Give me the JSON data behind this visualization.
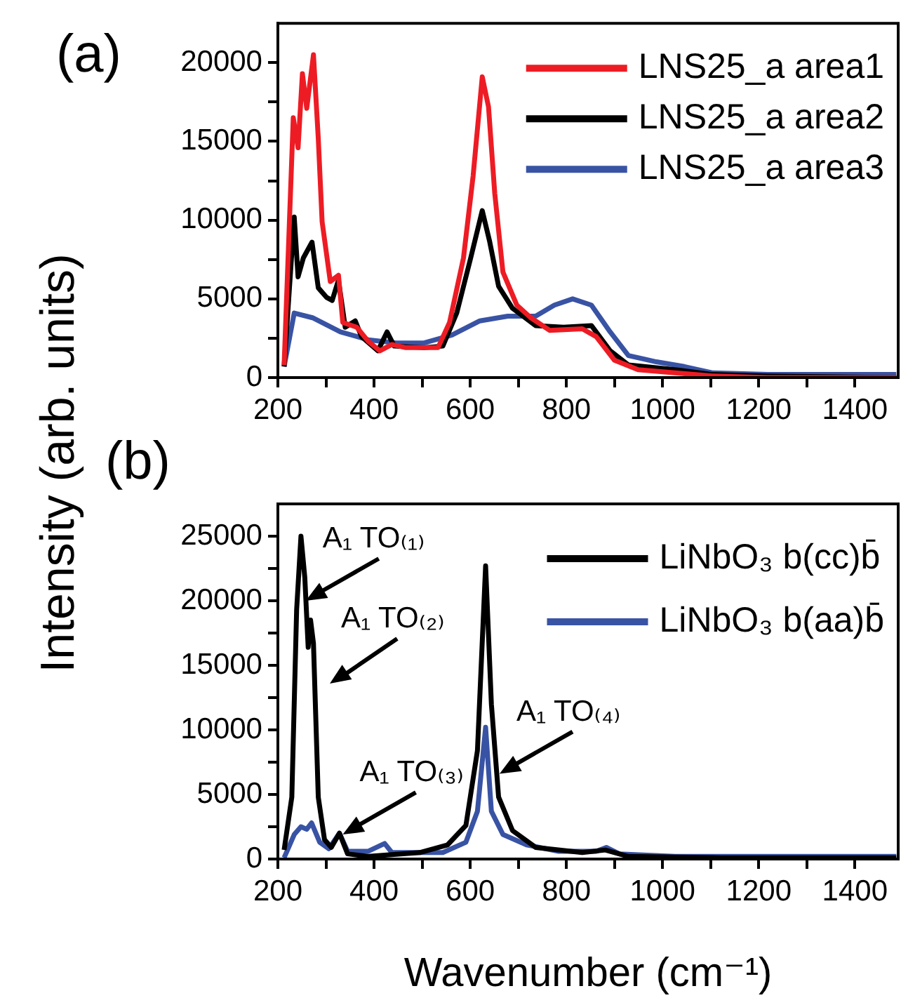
{
  "chart_data": [
    {
      "type": "line",
      "ylabel": "Intensity (arb. units)",
      "annotations": [
        "(a)"
      ],
      "legend": "top right",
      "grid": false,
      "marker": "none",
      "line_style": "solid",
      "xlim": [
        200,
        1490
      ],
      "xticks": [
        200,
        {
          "value": 300,
          "label": null
        },
        400,
        {
          "value": 500,
          "label": null
        },
        600,
        {
          "value": 700,
          "label": null
        },
        800,
        {
          "value": 900,
          "label": null
        },
        1000,
        {
          "value": 1100,
          "label": null
        },
        1200,
        {
          "value": 1300,
          "label": null
        },
        1400
      ],
      "ylim": [
        0,
        22500
      ],
      "yticks": [
        0,
        {
          "value": 2500,
          "label": null
        },
        5000,
        {
          "value": 7500,
          "label": null
        },
        10000,
        {
          "value": 12500,
          "label": null
        },
        15000,
        {
          "value": 17500,
          "label": null
        },
        20000
      ],
      "series": [
        {
          "name": "LNS25_a area1",
          "color": "#ed1c24",
          "x": [
            213,
            232,
            242,
            251,
            260,
            274,
            284,
            292,
            309,
            326,
            335,
            364,
            388,
            412,
            437,
            466,
            533,
            557,
            586,
            606,
            625,
            638,
            651,
            668,
            697,
            726,
            765,
            833,
            862,
            900,
            949,
            1026,
            1103,
            1219,
            1486
          ],
          "values": [
            800,
            16500,
            14600,
            19300,
            17100,
            20500,
            15200,
            9900,
            6100,
            6500,
            3500,
            3200,
            2300,
            1700,
            2100,
            1900,
            1900,
            3500,
            7600,
            12800,
            19100,
            17200,
            11700,
            6700,
            4600,
            3800,
            3000,
            3100,
            2600,
            1100,
            500,
            300,
            100,
            0,
            0
          ]
        },
        {
          "name": "LNS25_a area2",
          "color": "#000000",
          "x": [
            213,
            234,
            242,
            253,
            271,
            284,
            301,
            313,
            326,
            340,
            361,
            374,
            408,
            427,
            442,
            504,
            543,
            572,
            601,
            625,
            640,
            659,
            688,
            736,
            794,
            852,
            891,
            929,
            1026,
            1103,
            1219,
            1486
          ],
          "values": [
            700,
            10200,
            6400,
            7600,
            8600,
            5700,
            5100,
            4900,
            6200,
            3200,
            3600,
            2600,
            1700,
            2900,
            2000,
            1900,
            2000,
            4100,
            7600,
            10600,
            8700,
            5800,
            4400,
            3300,
            3200,
            3300,
            1700,
            800,
            500,
            200,
            100,
            0
          ]
        },
        {
          "name": "LNS25_a area3",
          "color": "#3953a4",
          "x": [
            213,
            234,
            272,
            330,
            388,
            446,
            504,
            562,
            620,
            678,
            736,
            775,
            813,
            852,
            891,
            929,
            987,
            1045,
            1103,
            1219,
            1486
          ],
          "values": [
            700,
            4100,
            3800,
            2900,
            2400,
            2200,
            2200,
            2700,
            3600,
            3900,
            3900,
            4600,
            5000,
            4600,
            2900,
            1400,
            1000,
            700,
            300,
            200,
            200
          ]
        }
      ]
    },
    {
      "type": "line",
      "xlabel": "Wavenumber (cm⁻¹)",
      "legend": "top right",
      "grid": false,
      "marker": "none",
      "line_style": "solid",
      "annotations": [
        "(b)",
        {
          "text": "A₁ TO₍₁₎",
          "x": 258,
          "y": 20000
        },
        "A₁ TO₍₂₎",
        {
          "text": "A₁ TO₍₃₎",
          "x": 335,
          "y": 1900
        },
        {
          "text": "A₁ TO₍₄₎",
          "x": 661,
          "y": 6600
        }
      ],
      "xlim": [
        200,
        1490
      ],
      "xticks": [
        200,
        {
          "value": 300,
          "label": null
        },
        400,
        {
          "value": 500,
          "label": null
        },
        600,
        {
          "value": 700,
          "label": null
        },
        800,
        {
          "value": 900,
          "label": null
        },
        1000,
        {
          "value": 1100,
          "label": null
        },
        1200,
        {
          "value": 1300,
          "label": null
        },
        1400
      ],
      "ylim": [
        0,
        27500
      ],
      "yticks": [
        0,
        {
          "value": 2500,
          "label": null
        },
        5000,
        {
          "value": 7500,
          "label": null
        },
        10000,
        {
          "value": 12500,
          "label": null
        },
        15000,
        {
          "value": 17500,
          "label": null
        },
        20000,
        {
          "value": 22500,
          "label": null
        },
        25000
      ],
      "series": [
        {
          "name": "LiNbO₃ b(cc)b̄",
          "color": "#000000",
          "x": [
            213,
            229,
            239,
            248,
            256,
            263,
            268,
            274,
            284,
            297,
            311,
            328,
            345,
            388,
            495,
            553,
            591,
            615,
            632,
            644,
            659,
            688,
            736,
            833,
            881,
            929,
            1122,
            1486
          ],
          "values": [
            700,
            4800,
            19300,
            25000,
            21800,
            16400,
            18500,
            16700,
            4800,
            1500,
            900,
            2000,
            400,
            200,
            500,
            1100,
            2600,
            8400,
            22700,
            12000,
            4800,
            2200,
            900,
            500,
            700,
            200,
            100,
            100
          ]
        },
        {
          "name": "LiNbO₃ b(aa)b̄",
          "color": "#3953a4",
          "x": [
            213,
            234,
            248,
            260,
            270,
            287,
            306,
            328,
            345,
            388,
            422,
            437,
            543,
            591,
            615,
            632,
            644,
            668,
            717,
            784,
            862,
            883,
            910,
            1026,
            1486
          ],
          "values": [
            100,
            1900,
            2500,
            2300,
            2800,
            1300,
            800,
            2000,
            600,
            600,
            1200,
            500,
            500,
            1300,
            3700,
            10200,
            3700,
            1900,
            1100,
            600,
            600,
            900,
            400,
            200,
            200
          ]
        }
      ]
    }
  ]
}
